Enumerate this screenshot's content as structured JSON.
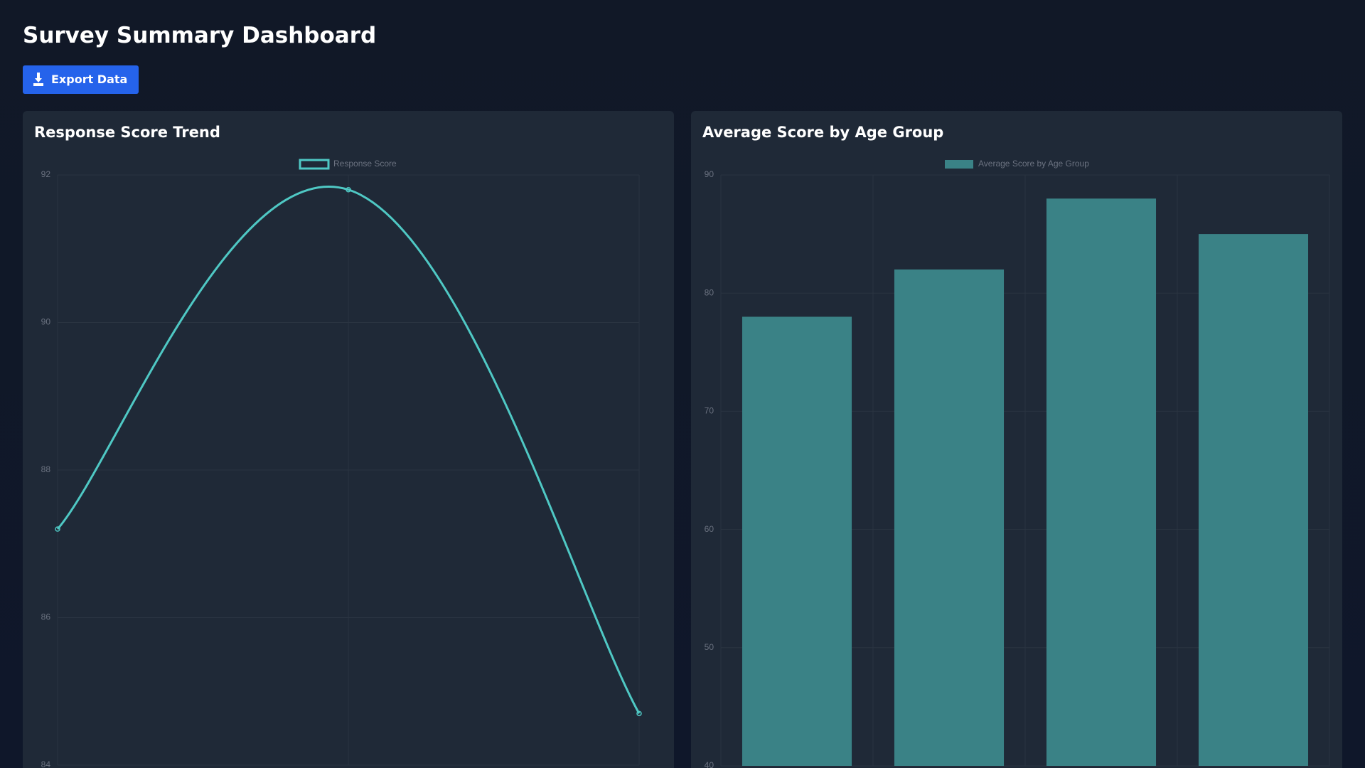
{
  "header": {
    "title": "Survey Summary Dashboard",
    "button": "Export Data"
  },
  "chart_data": [
    {
      "type": "line",
      "title": "Response Score Trend",
      "categories": [
        null,
        null,
        null
      ],
      "series": [
        {
          "name": "Response Score",
          "color": "#4fc8c4",
          "values": [
            87.2,
            91.8,
            84.7
          ]
        }
      ],
      "ylim": [
        84,
        92
      ],
      "yticks": [
        84,
        86,
        88,
        90,
        92
      ],
      "grid": true
    },
    {
      "type": "bar",
      "title": "Average Score by Age Group",
      "categories": [
        null,
        null,
        null,
        null
      ],
      "series": [
        {
          "name": "Average Score by Age Group",
          "color": "#3a8286",
          "values": [
            78,
            82,
            88,
            85
          ]
        }
      ],
      "ylim": [
        40,
        90
      ],
      "yticks": [
        40,
        50,
        60,
        70,
        80,
        90
      ],
      "grid": true
    }
  ]
}
